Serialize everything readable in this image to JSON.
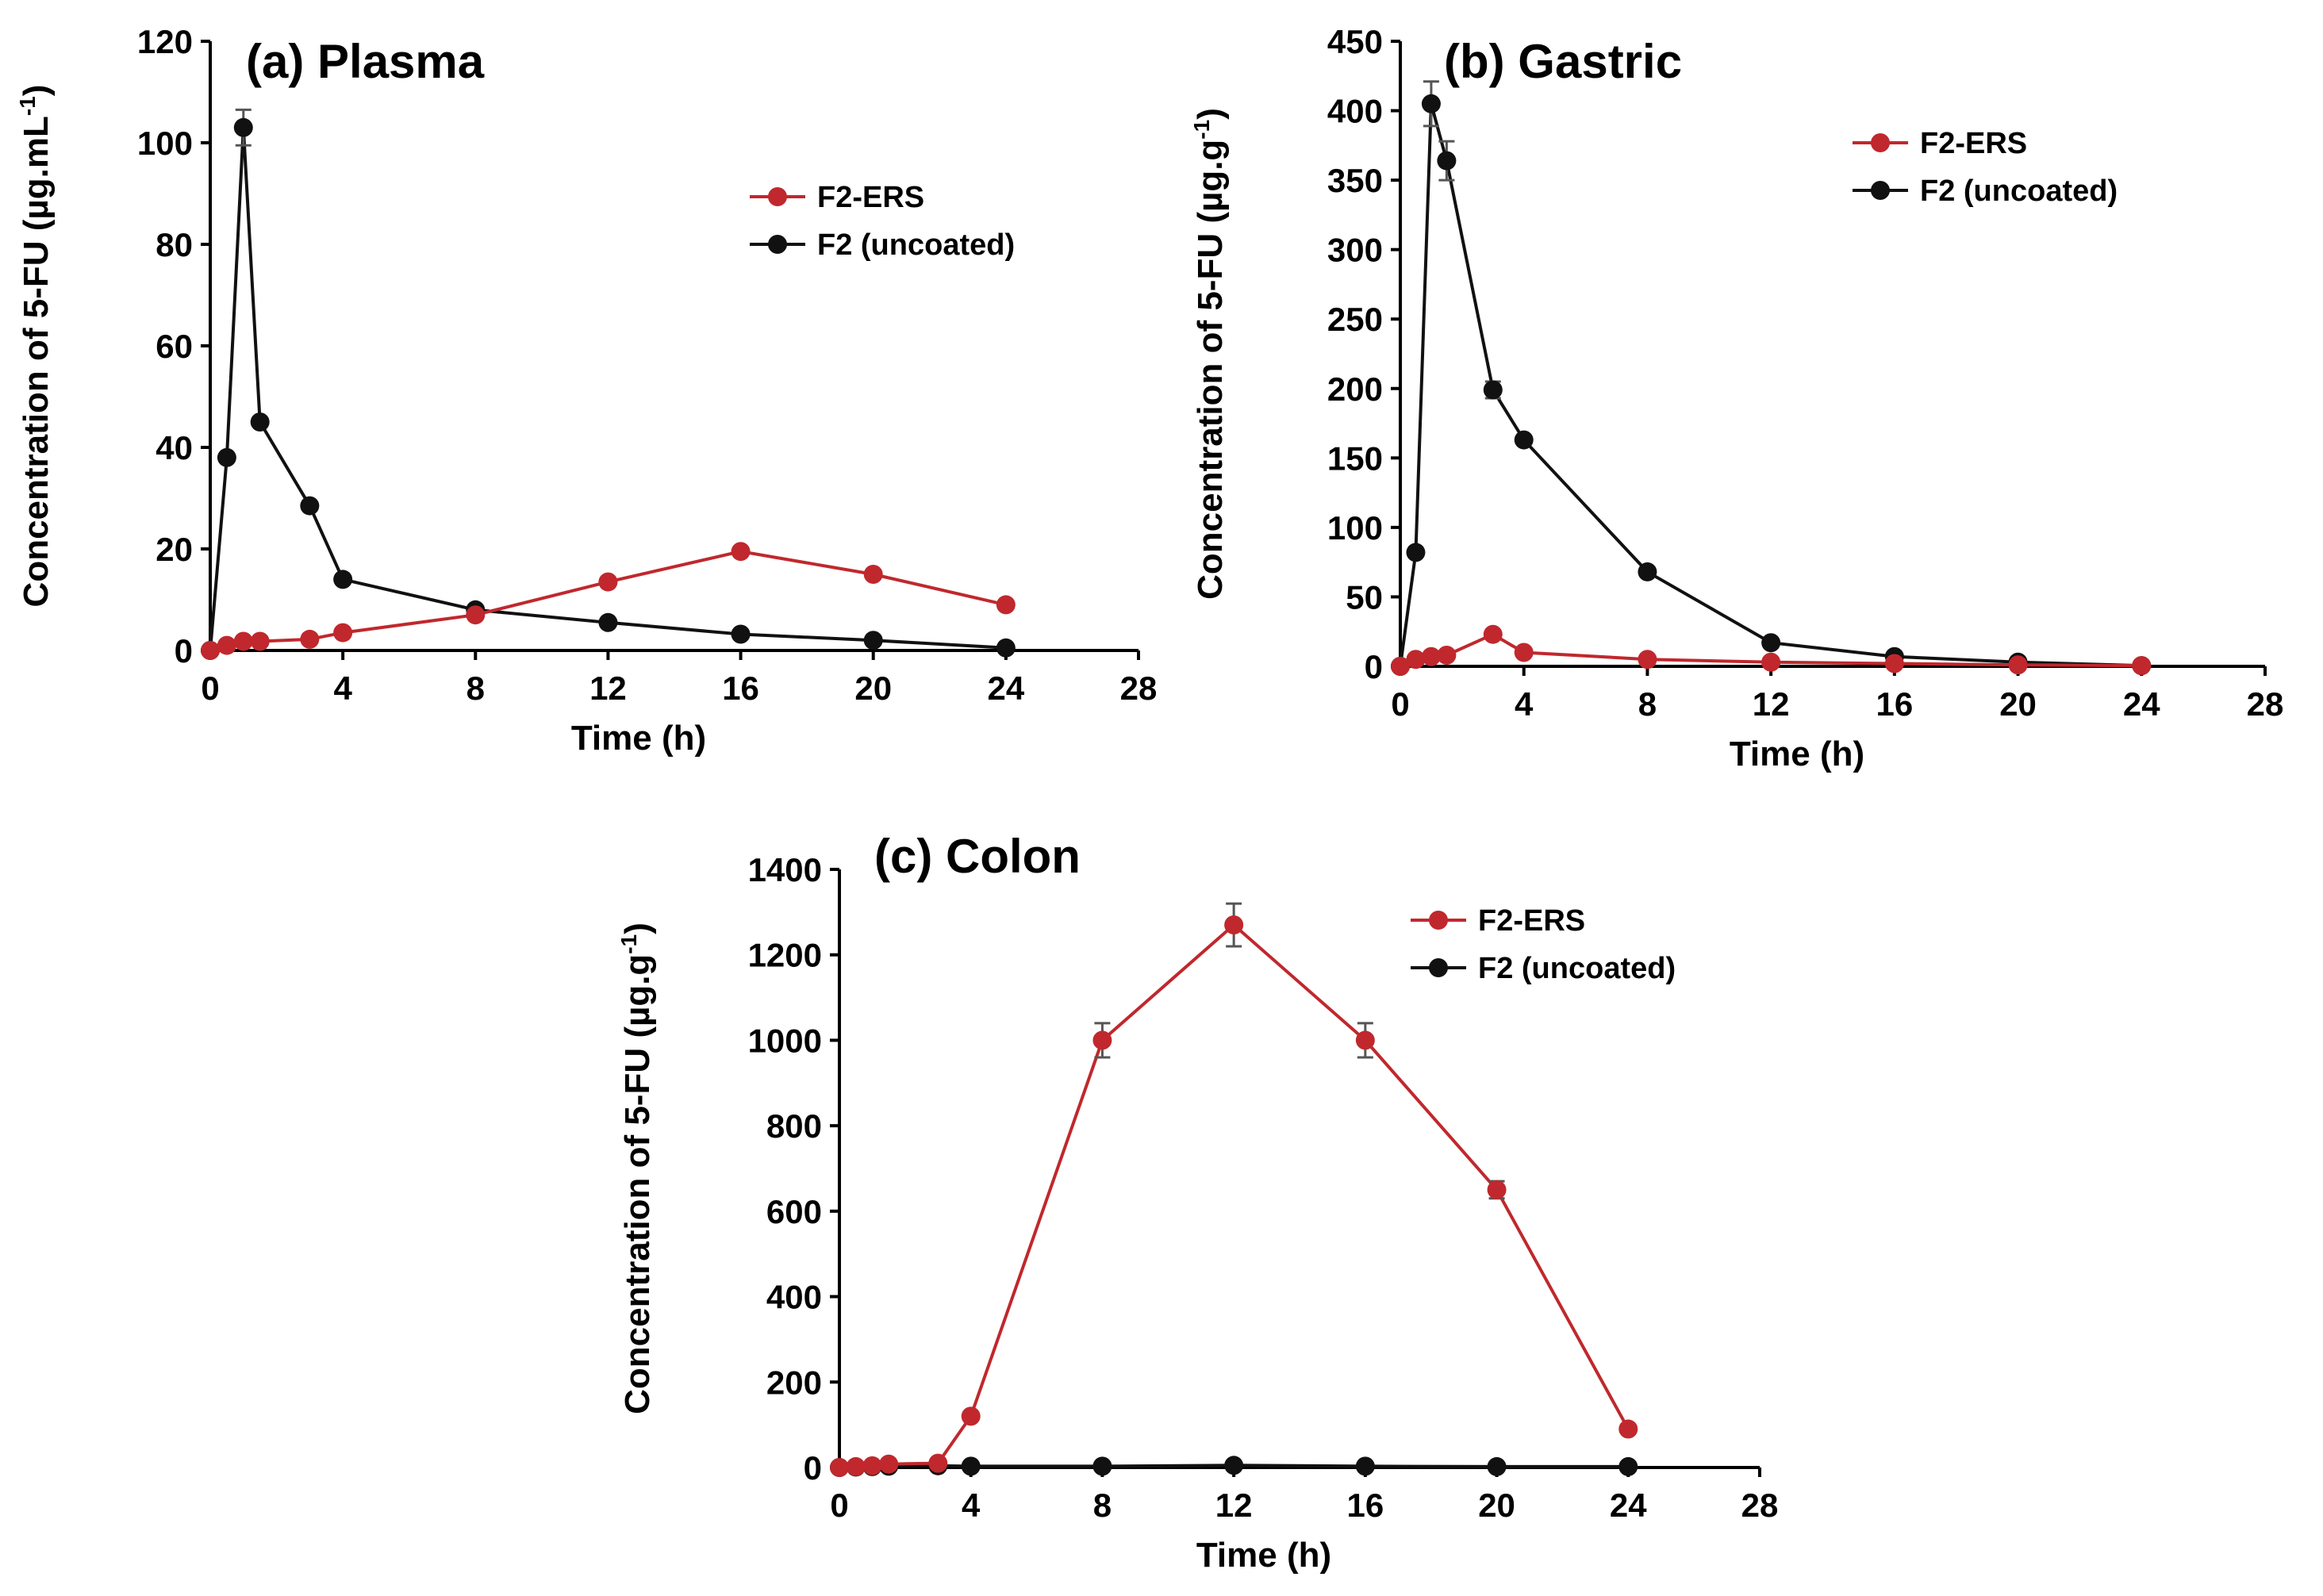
{
  "colors": {
    "ers": "#c0282d",
    "uncoated": "#111111",
    "errorbar": "#555555"
  },
  "chart_data": [
    {
      "type": "line",
      "title": "(a) Plasma",
      "xlabel": "Time (h)",
      "ylabel_main": "Concentration of 5-FU (µg.mL",
      "ylabel_sup": "-1",
      "ylabel_end": ")",
      "xlim": [
        0,
        28
      ],
      "ylim": [
        0,
        120
      ],
      "xticks": [
        0,
        4,
        8,
        12,
        16,
        20,
        24,
        28
      ],
      "yticks": [
        0,
        20,
        40,
        60,
        80,
        100,
        120
      ],
      "legend_position": "top-right",
      "series": [
        {
          "name": "F2-ERS",
          "color_key": "ers",
          "x": [
            0,
            0.5,
            1,
            1.5,
            3,
            4,
            8,
            12,
            16,
            20,
            24
          ],
          "y": [
            0,
            1,
            1.8,
            1.8,
            2.2,
            3.5,
            7,
            13.5,
            19.5,
            15,
            9
          ],
          "err": [
            0,
            0,
            0,
            0,
            0,
            0,
            0,
            0,
            0,
            0,
            0
          ]
        },
        {
          "name": "F2 (uncoated)",
          "color_key": "uncoated",
          "x": [
            0,
            0.5,
            1,
            1.5,
            3,
            4,
            8,
            12,
            16,
            20,
            24
          ],
          "y": [
            0,
            38,
            103,
            45,
            28.5,
            14,
            8,
            5.5,
            3.2,
            2,
            0.5
          ],
          "err": [
            0,
            0,
            3.5,
            0,
            0,
            0,
            0,
            0,
            0,
            0,
            0
          ]
        }
      ]
    },
    {
      "type": "line",
      "title": "(b) Gastric",
      "xlabel": "Time (h)",
      "ylabel_main": "Concentration of 5-FU (µg.g",
      "ylabel_sup": "-1",
      "ylabel_end": ")",
      "xlim": [
        0,
        28
      ],
      "ylim": [
        0,
        450
      ],
      "xticks": [
        0,
        4,
        8,
        12,
        16,
        20,
        24,
        28
      ],
      "yticks": [
        0,
        50,
        100,
        150,
        200,
        250,
        300,
        350,
        400,
        450
      ],
      "legend_position": "top-right",
      "series": [
        {
          "name": "F2-ERS",
          "color_key": "ers",
          "x": [
            0,
            0.5,
            1,
            1.5,
            3,
            4,
            8,
            12,
            16,
            20,
            24
          ],
          "y": [
            0,
            5,
            7,
            8,
            23,
            10,
            5,
            3,
            2,
            1,
            0.5
          ],
          "err": [
            0,
            0,
            0,
            0,
            0,
            0,
            0,
            0,
            0,
            0,
            0
          ]
        },
        {
          "name": "F2 (uncoated)",
          "color_key": "uncoated",
          "x": [
            0,
            0.5,
            1,
            1.5,
            3,
            4,
            8,
            12,
            16,
            20,
            24
          ],
          "y": [
            0,
            82,
            405,
            364,
            199,
            163,
            68,
            17,
            7,
            3,
            0.5
          ],
          "err": [
            0,
            0,
            16,
            14,
            6,
            0,
            0,
            0,
            0,
            0,
            0
          ]
        }
      ]
    },
    {
      "type": "line",
      "title": "(c) Colon",
      "xlabel": "Time (h)",
      "ylabel_main": "Concentration of 5-FU (µg.g",
      "ylabel_sup": "-1",
      "ylabel_end": ")",
      "xlim": [
        0,
        28
      ],
      "ylim": [
        0,
        1400
      ],
      "xticks": [
        0,
        4,
        8,
        12,
        16,
        20,
        24,
        28
      ],
      "yticks": [
        0,
        200,
        400,
        600,
        800,
        1000,
        1200,
        1400
      ],
      "legend_position": "top-right",
      "series": [
        {
          "name": "F2-ERS",
          "color_key": "ers",
          "x": [
            0,
            0.5,
            1,
            1.5,
            3,
            4,
            8,
            12,
            16,
            20,
            24
          ],
          "y": [
            0,
            2,
            4,
            8,
            10,
            120,
            1000,
            1270,
            1000,
            650,
            90
          ],
          "err": [
            0,
            0,
            0,
            0,
            0,
            0,
            40,
            50,
            40,
            20,
            0
          ]
        },
        {
          "name": "F2 (uncoated)",
          "color_key": "uncoated",
          "x": [
            0,
            0.5,
            1,
            1.5,
            3,
            4,
            8,
            12,
            16,
            20,
            24
          ],
          "y": [
            0,
            1,
            2,
            3,
            4,
            3,
            3,
            5,
            3,
            2,
            2
          ],
          "err": [
            0,
            0,
            0,
            0,
            0,
            0,
            0,
            0,
            0,
            0,
            0
          ]
        }
      ]
    }
  ]
}
